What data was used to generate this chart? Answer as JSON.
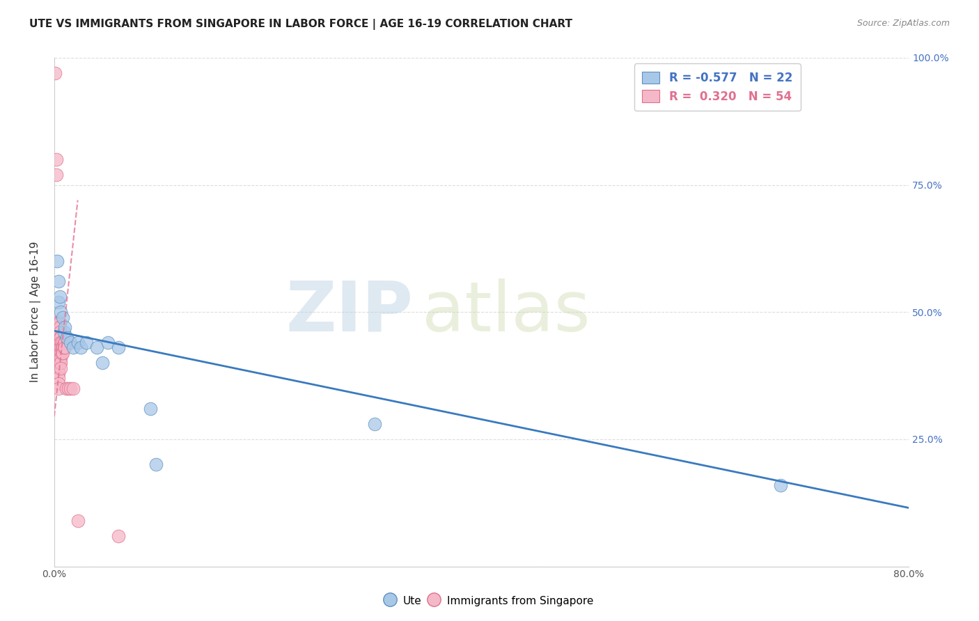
{
  "title": "UTE VS IMMIGRANTS FROM SINGAPORE IN LABOR FORCE | AGE 16-19 CORRELATION CHART",
  "source": "Source: ZipAtlas.com",
  "ylabel": "In Labor Force | Age 16-19",
  "xlim": [
    0.0,
    0.8
  ],
  "ylim": [
    0.0,
    1.0
  ],
  "xticks": [
    0.0,
    0.1,
    0.2,
    0.3,
    0.4,
    0.5,
    0.6,
    0.7,
    0.8
  ],
  "yticks": [
    0.0,
    0.25,
    0.5,
    0.75,
    1.0
  ],
  "xtick_labels": [
    "0.0%",
    "",
    "",
    "",
    "",
    "",
    "",
    "",
    "80.0%"
  ],
  "ytick_labels_right": [
    "",
    "25.0%",
    "50.0%",
    "75.0%",
    "100.0%"
  ],
  "blue_color": "#a8c8e8",
  "pink_color": "#f5b8c8",
  "blue_edge_color": "#6090c0",
  "pink_edge_color": "#e07090",
  "blue_line_color": "#3a7abf",
  "pink_line_color": "#e87090",
  "legend_R_blue": "-0.577",
  "legend_N_blue": "22",
  "legend_R_pink": "0.320",
  "legend_N_pink": "54",
  "watermark_zip": "ZIP",
  "watermark_atlas": "atlas",
  "background_color": "#ffffff",
  "grid_color": "#dddddd",
  "blue_x": [
    0.003,
    0.004,
    0.004,
    0.005,
    0.006,
    0.008,
    0.009,
    0.01,
    0.012,
    0.015,
    0.018,
    0.022,
    0.025,
    0.03,
    0.04,
    0.045,
    0.05,
    0.06,
    0.09,
    0.095,
    0.3,
    0.68
  ],
  "blue_y": [
    0.6,
    0.56,
    0.52,
    0.53,
    0.5,
    0.49,
    0.46,
    0.47,
    0.45,
    0.44,
    0.43,
    0.44,
    0.43,
    0.44,
    0.43,
    0.4,
    0.44,
    0.43,
    0.31,
    0.2,
    0.28,
    0.16
  ],
  "pink_x": [
    0.001,
    0.002,
    0.002,
    0.003,
    0.003,
    0.003,
    0.003,
    0.003,
    0.003,
    0.004,
    0.004,
    0.004,
    0.004,
    0.004,
    0.004,
    0.004,
    0.004,
    0.004,
    0.004,
    0.004,
    0.004,
    0.004,
    0.004,
    0.005,
    0.005,
    0.005,
    0.005,
    0.005,
    0.005,
    0.005,
    0.005,
    0.005,
    0.006,
    0.006,
    0.006,
    0.006,
    0.006,
    0.006,
    0.006,
    0.007,
    0.007,
    0.007,
    0.008,
    0.008,
    0.009,
    0.009,
    0.01,
    0.01,
    0.011,
    0.013,
    0.015,
    0.018,
    0.022,
    0.06
  ],
  "pink_y": [
    0.97,
    0.8,
    0.77,
    0.48,
    0.47,
    0.46,
    0.45,
    0.44,
    0.43,
    0.48,
    0.47,
    0.46,
    0.45,
    0.44,
    0.43,
    0.42,
    0.41,
    0.4,
    0.39,
    0.38,
    0.37,
    0.36,
    0.35,
    0.48,
    0.47,
    0.46,
    0.45,
    0.44,
    0.43,
    0.42,
    0.41,
    0.4,
    0.45,
    0.44,
    0.43,
    0.42,
    0.41,
    0.4,
    0.39,
    0.44,
    0.43,
    0.42,
    0.43,
    0.42,
    0.44,
    0.43,
    0.44,
    0.43,
    0.35,
    0.35,
    0.35,
    0.35,
    0.09,
    0.06
  ],
  "blue_trend_x0": 0.0,
  "blue_trend_y0": 0.463,
  "blue_trend_x1": 0.8,
  "blue_trend_y1": 0.115,
  "pink_trend_x0": 0.0,
  "pink_trend_y0": 0.295,
  "pink_trend_x1": 0.022,
  "pink_trend_y1": 0.72
}
